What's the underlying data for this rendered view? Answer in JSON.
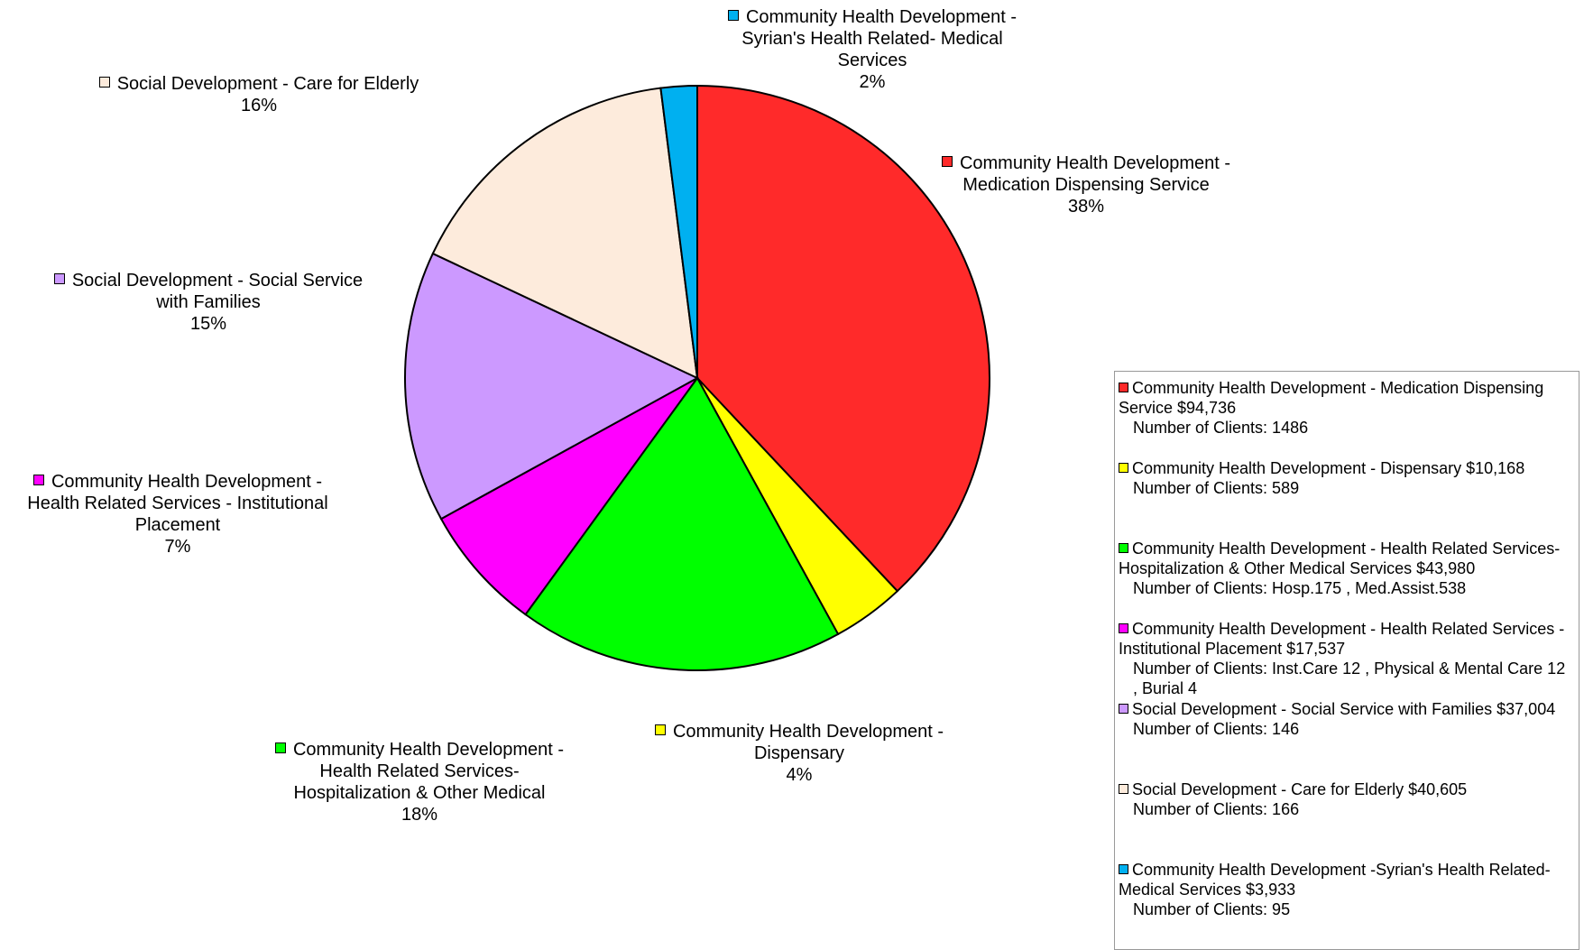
{
  "chart_data": {
    "type": "pie",
    "categories": [
      "Community Health Development - Medication Dispensing Service",
      "Community Health Development - Dispensary",
      "Community Health Development - Health Related Services- Hospitalization & Other Medical",
      "Community Health Development - Health Related Services - Institutional Placement",
      "Social Development - Social Service with Families",
      "Social Development - Care for Elderly",
      "Community Health Development - Syrian's Health Related- Medical Services"
    ],
    "values": [
      38,
      4,
      18,
      7,
      15,
      16,
      2
    ],
    "value_labels": [
      "38%",
      "4%",
      "18%",
      "7%",
      "15%",
      "16%",
      "2%"
    ],
    "colors": [
      "#ff2a2a",
      "#ffff00",
      "#00ff00",
      "#ff00ff",
      "#cc99ff",
      "#fdebdc",
      "#00b0f0"
    ],
    "legend": {
      "position": "right",
      "entries": [
        [
          "Community Health Development - Medication Dispensing Service $94,736",
          "Number of Clients: 1486"
        ],
        [
          "Community Health Development - Dispensary $10,168",
          "Number of Clients: 589"
        ],
        [
          "Community Health Development - Health Related Services- Hospitalization & Other Medical Services $43,980",
          "Number of Clients: Hosp.175 , Med.Assist.538"
        ],
        [
          "Community Health Development - Health Related Services - Institutional Placement $17,537",
          "Number of Clients: Inst.Care 12 , Physical & Mental Care 12 ,  Burial 4"
        ],
        [
          "Social Development - Social Service with Families $37,004",
          "Number of Clients: 146"
        ],
        [
          "Social Development - Care for Elderly $40,605",
          "Number of Clients: 166"
        ],
        [
          "Community Health Development -Syrian's Health Related-Medical Services $3,933",
          "Number of Clients: 95"
        ]
      ]
    }
  }
}
